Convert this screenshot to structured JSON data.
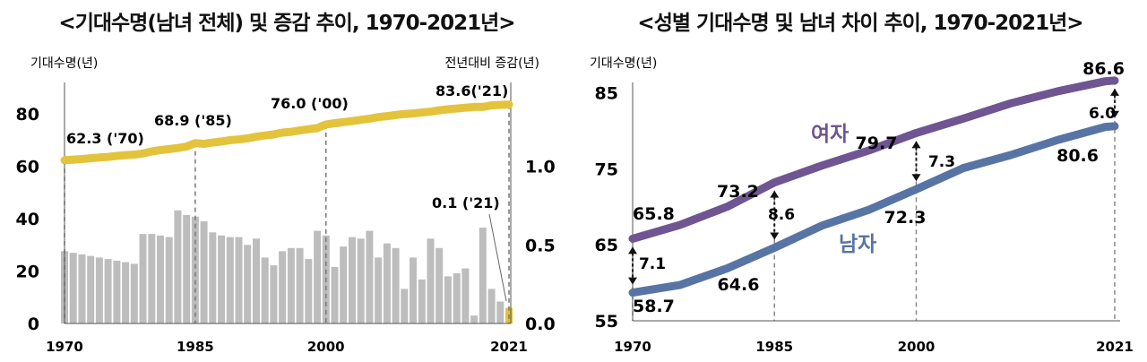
{
  "left": {
    "title": "<기대수명(남녀 전체) 및 증감 추이, 1970-2021년>",
    "y_left_label": "기대수명(년)",
    "y_right_label": "전년대비 증감(년)"
  },
  "right": {
    "title": "<성별 기대수명 및 남녀 차이 추이, 1970-2021년>",
    "y_label": "기대수명(년)"
  },
  "colors": {
    "total_line": "#E3C33B",
    "bars": "#BDBDBD",
    "bar_highlight": "#E3C33B",
    "female": "#6F5592",
    "male": "#5774A4"
  },
  "chart_data": [
    {
      "type": "bar+line",
      "xlim": [
        1970,
        2021
      ],
      "x_ticks": [
        1970,
        1985,
        2000,
        2021
      ],
      "y_left_lim": [
        0,
        90
      ],
      "y_left_ticks": [
        0,
        20,
        40,
        60,
        80
      ],
      "y_right_lim": [
        0,
        1.5
      ],
      "y_right_ticks": [
        "0.0",
        "0.5",
        "1.0"
      ],
      "line_series": {
        "name": "기대수명",
        "x": [
          1970,
          1971,
          1972,
          1973,
          1974,
          1975,
          1976,
          1977,
          1978,
          1979,
          1980,
          1981,
          1982,
          1983,
          1984,
          1985,
          1986,
          1987,
          1988,
          1989,
          1990,
          1991,
          1992,
          1993,
          1994,
          1995,
          1996,
          1997,
          1998,
          1999,
          2000,
          2001,
          2002,
          2003,
          2004,
          2005,
          2006,
          2007,
          2008,
          2009,
          2010,
          2011,
          2012,
          2013,
          2014,
          2015,
          2016,
          2017,
          2018,
          2019,
          2020,
          2021
        ],
        "y": [
          62.3,
          62.6,
          62.8,
          63.1,
          63.4,
          63.6,
          64.0,
          64.3,
          64.5,
          64.9,
          65.7,
          66.2,
          66.6,
          67.0,
          67.6,
          68.9,
          68.6,
          69.1,
          69.5,
          70.0,
          70.3,
          70.7,
          71.3,
          71.8,
          72.2,
          72.9,
          73.2,
          73.7,
          74.2,
          74.6,
          76.0,
          76.5,
          76.9,
          77.3,
          77.8,
          78.2,
          78.8,
          79.2,
          79.6,
          80.0,
          80.2,
          80.6,
          80.9,
          81.4,
          81.8,
          82.1,
          82.4,
          82.7,
          82.7,
          83.3,
          83.5,
          83.6
        ]
      },
      "bar_series": {
        "name": "전년대비 증감",
        "x": [
          1970,
          1971,
          1972,
          1973,
          1974,
          1975,
          1976,
          1977,
          1978,
          1979,
          1980,
          1981,
          1982,
          1983,
          1984,
          1985,
          1986,
          1987,
          1988,
          1989,
          1990,
          1991,
          1992,
          1993,
          1994,
          1995,
          1996,
          1997,
          1998,
          1999,
          2000,
          2001,
          2002,
          2003,
          2004,
          2005,
          2006,
          2007,
          2008,
          2009,
          2010,
          2011,
          2012,
          2013,
          2014,
          2015,
          2016,
          2017,
          2018,
          2019,
          2020,
          2021
        ],
        "values": [
          0.46,
          0.45,
          0.44,
          0.43,
          0.42,
          0.41,
          0.4,
          0.39,
          0.38,
          0.57,
          0.57,
          0.56,
          0.55,
          0.72,
          0.69,
          0.68,
          0.65,
          0.58,
          0.56,
          0.55,
          0.55,
          0.5,
          0.54,
          0.42,
          0.37,
          0.46,
          0.48,
          0.48,
          0.41,
          0.59,
          0.56,
          0.36,
          0.49,
          0.55,
          0.54,
          0.59,
          0.42,
          0.51,
          0.48,
          0.22,
          0.42,
          0.28,
          0.54,
          0.48,
          0.3,
          0.32,
          0.35,
          0.05,
          0.61,
          0.22,
          0.14,
          0.1
        ]
      },
      "annotations": [
        "62.3 ('70)",
        "68.9 ('85)",
        "76.0 ('00)",
        "83.6('21)",
        "0.1 ('21)"
      ]
    },
    {
      "type": "line",
      "xlim": [
        1970,
        2021
      ],
      "x_ticks": [
        1970,
        1985,
        2000,
        2021
      ],
      "ylim": [
        55,
        88
      ],
      "y_ticks": [
        55,
        65,
        75,
        85
      ],
      "series": [
        {
          "name": "여자",
          "x": [
            1970,
            1975,
            1980,
            1985,
            1990,
            1995,
            2000,
            2005,
            2010,
            2015,
            2020,
            2021
          ],
          "y": [
            65.8,
            67.6,
            70.0,
            73.2,
            75.4,
            77.4,
            79.7,
            81.6,
            83.6,
            85.2,
            86.5,
            86.6
          ]
        },
        {
          "name": "남자",
          "x": [
            1970,
            1975,
            1980,
            1985,
            1990,
            1995,
            2000,
            2005,
            2010,
            2015,
            2020,
            2021
          ],
          "y": [
            58.7,
            59.7,
            61.9,
            64.6,
            67.5,
            69.6,
            72.3,
            75.1,
            76.8,
            78.8,
            80.5,
            80.6
          ]
        }
      ],
      "point_labels": [
        {
          "series": "여자",
          "x": 1970,
          "text": "65.8"
        },
        {
          "series": "여자",
          "x": 1985,
          "text": "73.2"
        },
        {
          "series": "여자",
          "x": 2000,
          "text": "79.7"
        },
        {
          "series": "여자",
          "x": 2021,
          "text": "86.6"
        },
        {
          "series": "남자",
          "x": 1970,
          "text": "58.7"
        },
        {
          "series": "남자",
          "x": 1985,
          "text": "64.6"
        },
        {
          "series": "남자",
          "x": 2000,
          "text": "72.3"
        },
        {
          "series": "남자",
          "x": 2021,
          "text": "80.6"
        }
      ],
      "gap_labels": [
        {
          "x": 1970,
          "text": "7.1"
        },
        {
          "x": 1985,
          "text": "8.6"
        },
        {
          "x": 2000,
          "text": "7.3"
        },
        {
          "x": 2021,
          "text": "6.0"
        }
      ]
    }
  ]
}
